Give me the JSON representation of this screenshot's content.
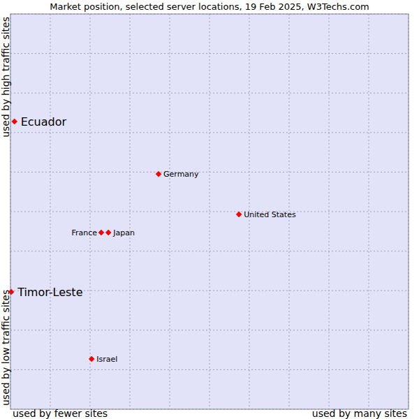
{
  "chart_data": {
    "type": "scatter",
    "title": "Market position, selected server locations, 19 Feb 2025, W3Techs.com",
    "xlabel_left": "used by fewer sites",
    "xlabel_right": "used by many sites",
    "ylabel_bottom": "used by low traffic sites",
    "ylabel_top": "used by high traffic sites",
    "labels": [
      "Ecuador",
      "Timor-Leste",
      "Germany",
      "United States",
      "France",
      "Japan",
      "Israel"
    ],
    "x": [
      0.1,
      0.02,
      3.72,
      5.74,
      2.28,
      2.46,
      2.04
    ],
    "values": [
      7.28,
      2.97,
      5.95,
      4.93,
      4.47,
      4.47,
      1.27
    ],
    "color": "#ff0000",
    "marker": "diamond",
    "xlim": [
      0,
      10
    ],
    "ylim": [
      0,
      10
    ],
    "xticks": [
      0,
      1,
      2,
      3,
      4,
      5,
      6,
      7,
      8,
      9,
      10
    ],
    "yticks": [
      0,
      1,
      2,
      3,
      4,
      5,
      6,
      7,
      8,
      9,
      10
    ],
    "grid": true,
    "tick_labels": false,
    "data_labels": true
  }
}
